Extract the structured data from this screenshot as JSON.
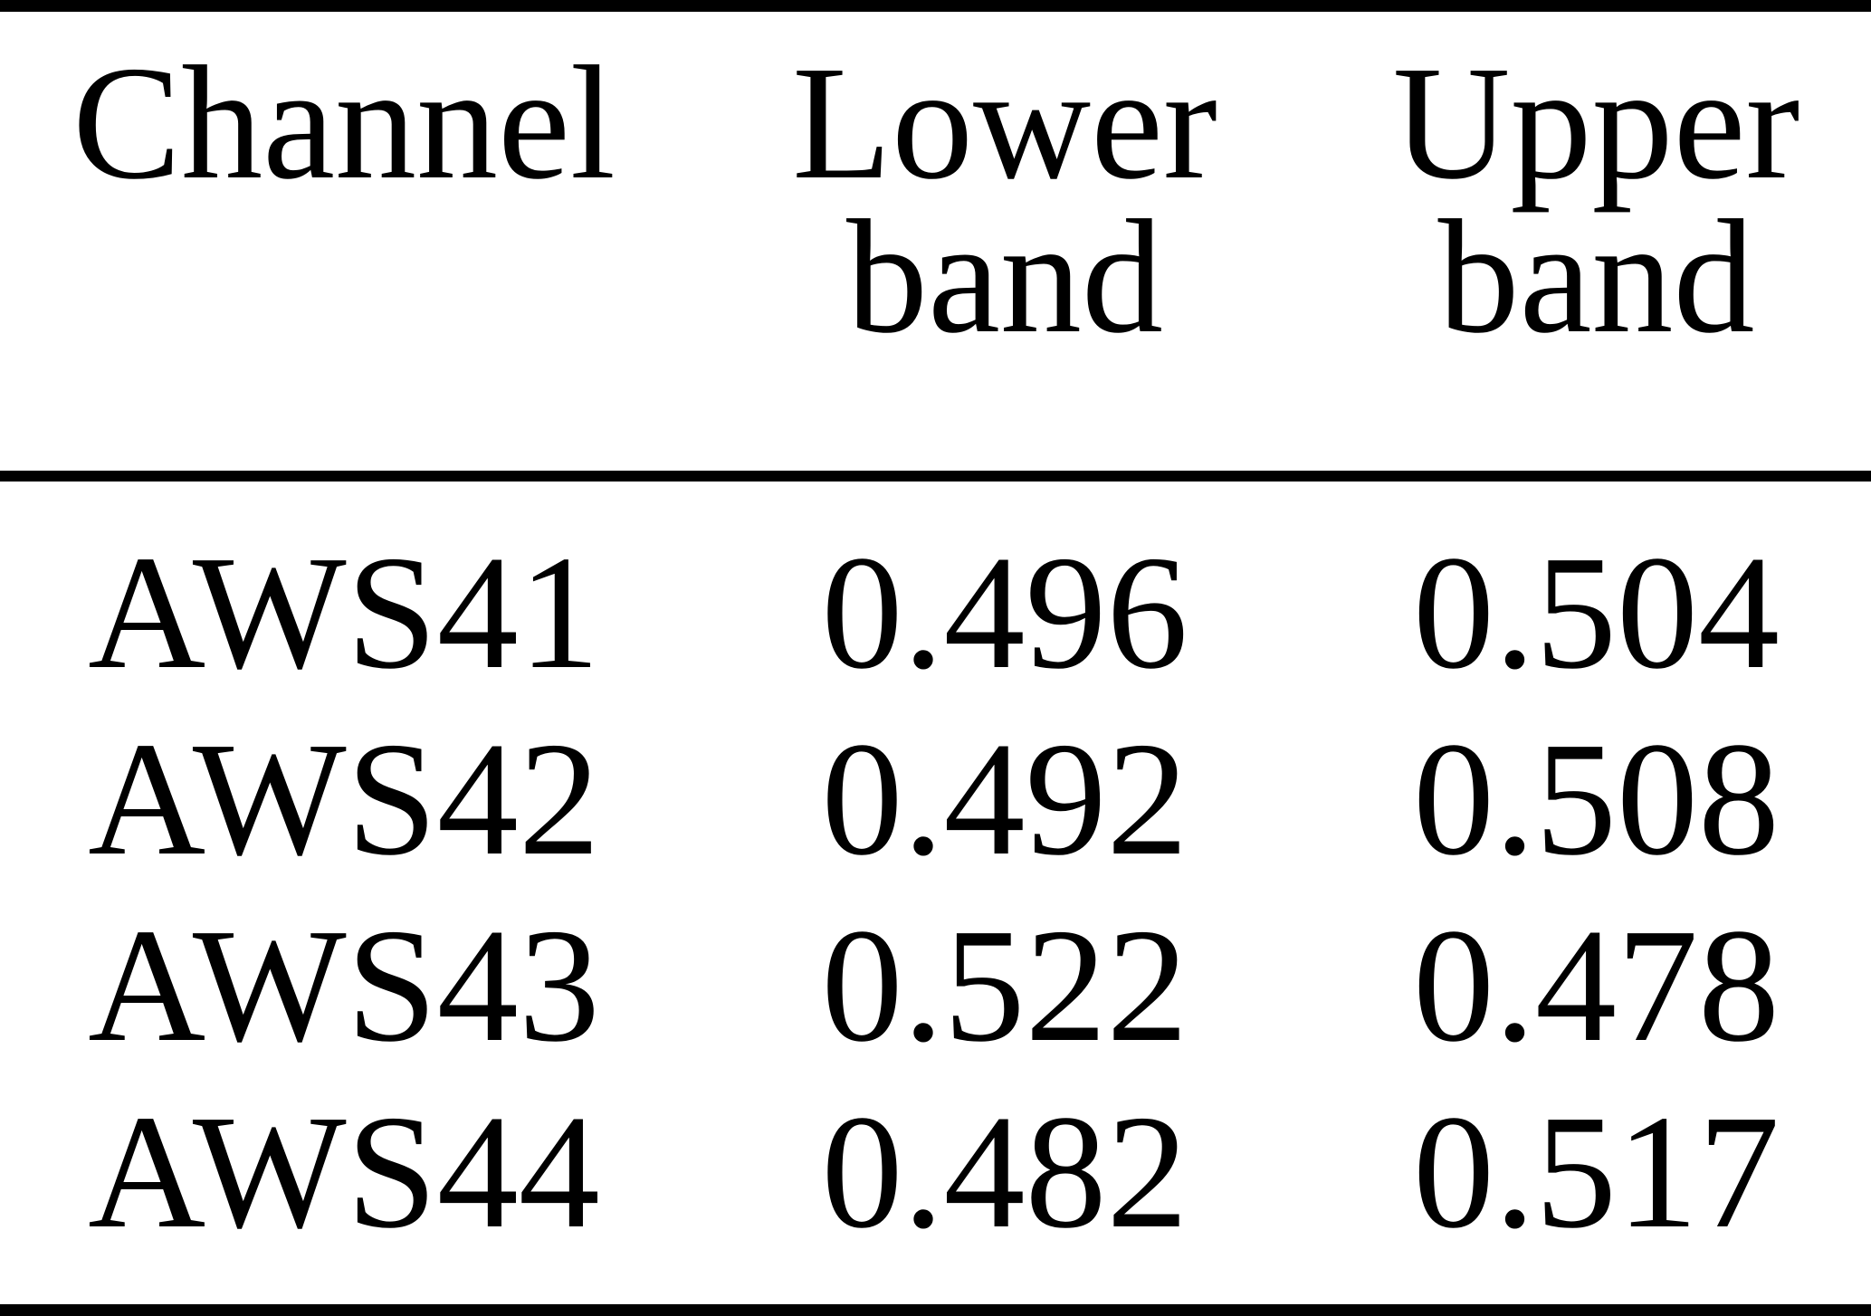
{
  "page": {
    "background": "#ffffff",
    "text_color": "#000000",
    "rule_color": "#000000"
  },
  "table": {
    "header": {
      "channel": "Channel",
      "lower": {
        "line1": "Lower",
        "line2": "band"
      },
      "upper": {
        "line1": "Upper",
        "line2": "band"
      }
    },
    "rows": [
      {
        "channel": "AWS41",
        "lower_band": "0.496",
        "upper_band": "0.504"
      },
      {
        "channel": "AWS42",
        "lower_band": "0.492",
        "upper_band": "0.508"
      },
      {
        "channel": "AWS43",
        "lower_band": "0.522",
        "upper_band": "0.478"
      },
      {
        "channel": "AWS44",
        "lower_band": "0.482",
        "upper_band": "0.517"
      }
    ]
  },
  "chart_data": {
    "type": "table",
    "title": "",
    "columns": [
      "Channel",
      "Lower band",
      "Upper band"
    ],
    "rows": [
      [
        "AWS41",
        0.496,
        0.504
      ],
      [
        "AWS42",
        0.492,
        0.508
      ],
      [
        "AWS43",
        0.522,
        0.478
      ],
      [
        "AWS44",
        0.482,
        0.517
      ]
    ]
  }
}
